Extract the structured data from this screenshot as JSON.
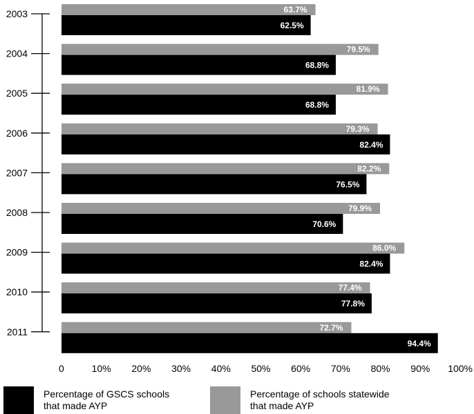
{
  "chart_data": {
    "type": "bar",
    "orientation": "horizontal",
    "categories": [
      "2003",
      "2004",
      "2005",
      "2006",
      "2007",
      "2008",
      "2009",
      "2010",
      "2011"
    ],
    "series": [
      {
        "name": "Percentage of schools statewide\nthat made AYP",
        "color": "#999999",
        "values": [
          63.7,
          79.5,
          81.9,
          79.3,
          82.2,
          79.9,
          86.0,
          77.4,
          72.7
        ],
        "labels": [
          "63.7%",
          "79.5%",
          "81.9%",
          "79.3%",
          "82.2%",
          "79.9%",
          "86.0%",
          "77.4%",
          "72.7%"
        ]
      },
      {
        "name": "Percentage of GSCS schools\nthat made AYP",
        "color": "#000000",
        "values": [
          62.5,
          68.8,
          68.8,
          82.4,
          76.5,
          70.6,
          82.4,
          77.8,
          94.4
        ],
        "labels": [
          "62.5%",
          "68.8%",
          "68.8%",
          "82.4%",
          "76.5%",
          "70.6%",
          "82.4%",
          "77.8%",
          "94.4%"
        ]
      }
    ],
    "xlim": [
      0,
      100
    ],
    "xticks": [
      "0",
      "10%",
      "20%",
      "30%",
      "40%",
      "50%",
      "60%",
      "70%",
      "80%",
      "90%",
      "100%"
    ],
    "grid": false,
    "legend_position": "bottom"
  },
  "legend": [
    {
      "label": "Percentage of GSCS schools\nthat made AYP",
      "color": "#000000"
    },
    {
      "label": "Percentage of schools statewide\nthat made AYP",
      "color": "#999999"
    }
  ]
}
